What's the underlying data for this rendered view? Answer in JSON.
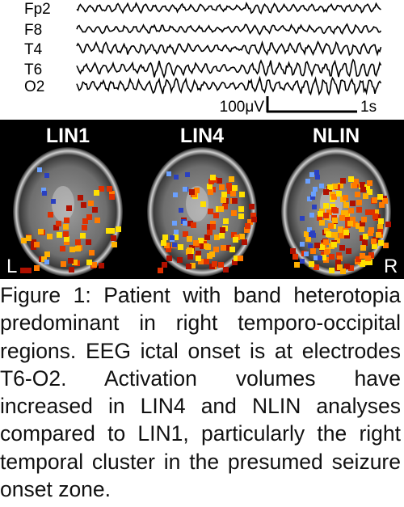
{
  "eeg": {
    "channels": [
      "Fp2",
      "F8",
      "T4",
      "T6",
      "O2"
    ],
    "scale_amplitude": "100μV",
    "scale_time": "1s"
  },
  "panels": [
    {
      "label": "LIN1"
    },
    {
      "label": "LIN4"
    },
    {
      "label": "NLIN"
    }
  ],
  "orientation": {
    "left": "L",
    "right": "R"
  },
  "caption": "Figure 1: Patient with band heterotopia predominant in right temporo-occipital regions. EEG ictal onset is at electrodes T6-O2. Activation volumes have increased in LIN4 and NLIN analyses compared to LIN1, particularly the right temporal cluster in the presumed seizure onset zone."
}
